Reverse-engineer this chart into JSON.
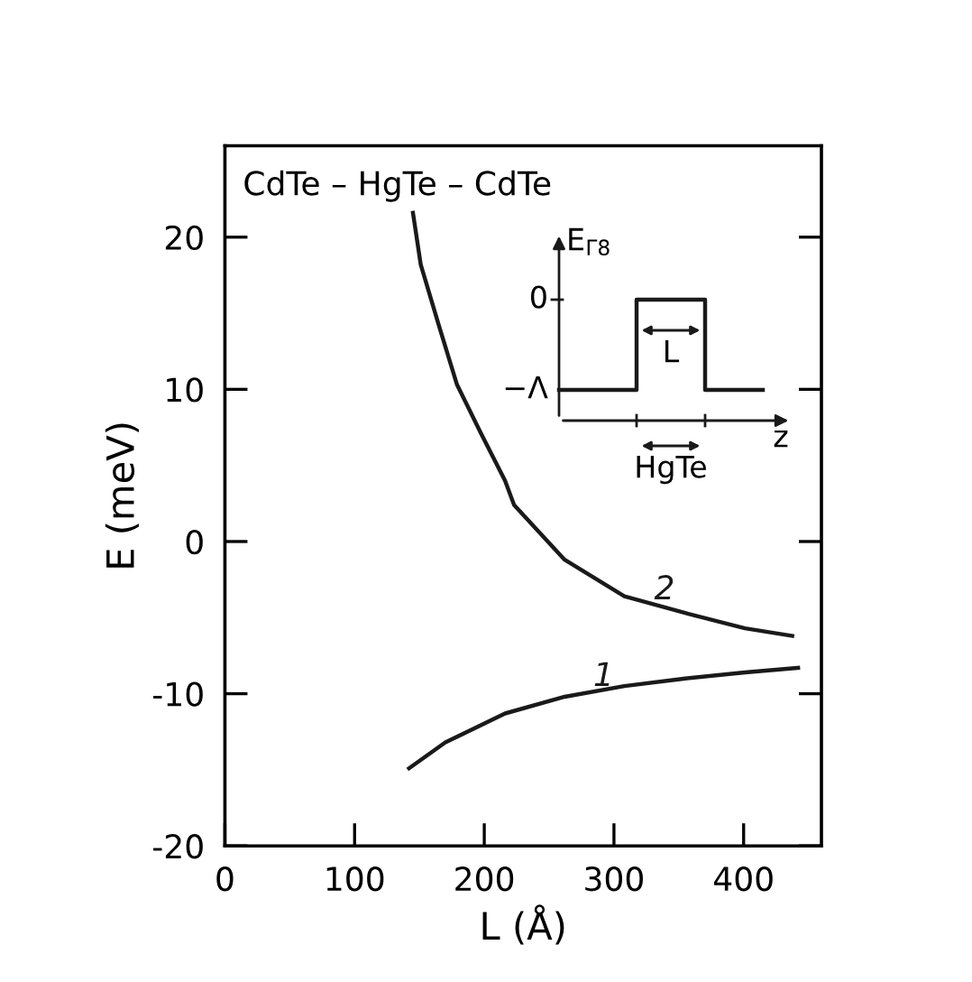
{
  "chart_data": {
    "type": "line",
    "xlabel": "L (Å)",
    "ylabel": "E (meV)",
    "xlim": [
      0,
      460
    ],
    "xticks": [
      0,
      100,
      200,
      300,
      400
    ],
    "ylim": [
      -20,
      26
    ],
    "yticks": [
      -20,
      -10,
      0,
      10,
      20
    ],
    "tick_labels": "xy",
    "grid": false,
    "marker": "none",
    "line_style": "solid",
    "series": [
      {
        "name": "1",
        "color": "#1a1a1a",
        "x": [
          142,
          170,
          216,
          262,
          308,
          355,
          401,
          442
        ],
        "values": [
          -14.9,
          -13.2,
          -11.3,
          -10.2,
          -9.5,
          -9.0,
          -8.6,
          -8.3
        ]
      },
      {
        "name": "2",
        "color": "#1a1a1a",
        "x": [
          145,
          151,
          165,
          179,
          197.5,
          216,
          223,
          262,
          308,
          355,
          401,
          437.5
        ],
        "values": [
          21.6,
          18.2,
          14.2,
          10.3,
          7.1,
          4.0,
          2.4,
          -1.2,
          -3.6,
          -4.7,
          -5.7,
          -6.2
        ]
      }
    ],
    "annotations": [
      "CdTe – HgTe – CdTe",
      "E$_{Γ8}$",
      "0",
      "−Λ",
      "L",
      "z",
      "HgTe"
    ]
  }
}
